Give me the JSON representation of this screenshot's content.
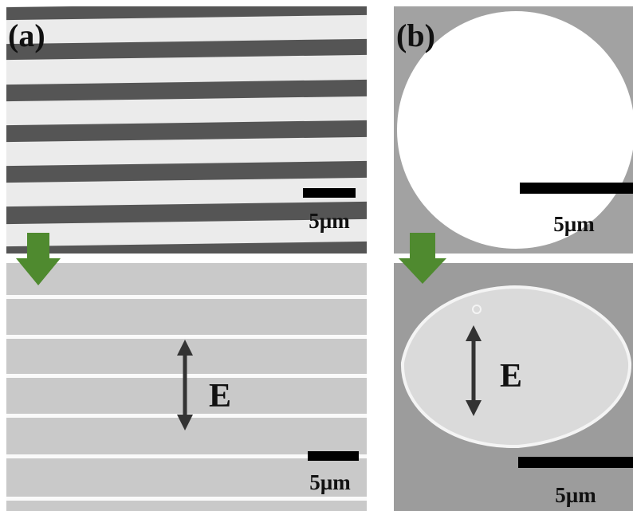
{
  "panels": [
    {
      "label": "(a)",
      "top": {
        "scale_bar": "5µm"
      },
      "bottom": {
        "scale_bar": "5µm",
        "field_label": "E"
      }
    },
    {
      "label": "(b)",
      "top": {
        "scale_bar": "5µm"
      },
      "bottom": {
        "scale_bar": "5µm",
        "field_label": "E"
      }
    }
  ]
}
